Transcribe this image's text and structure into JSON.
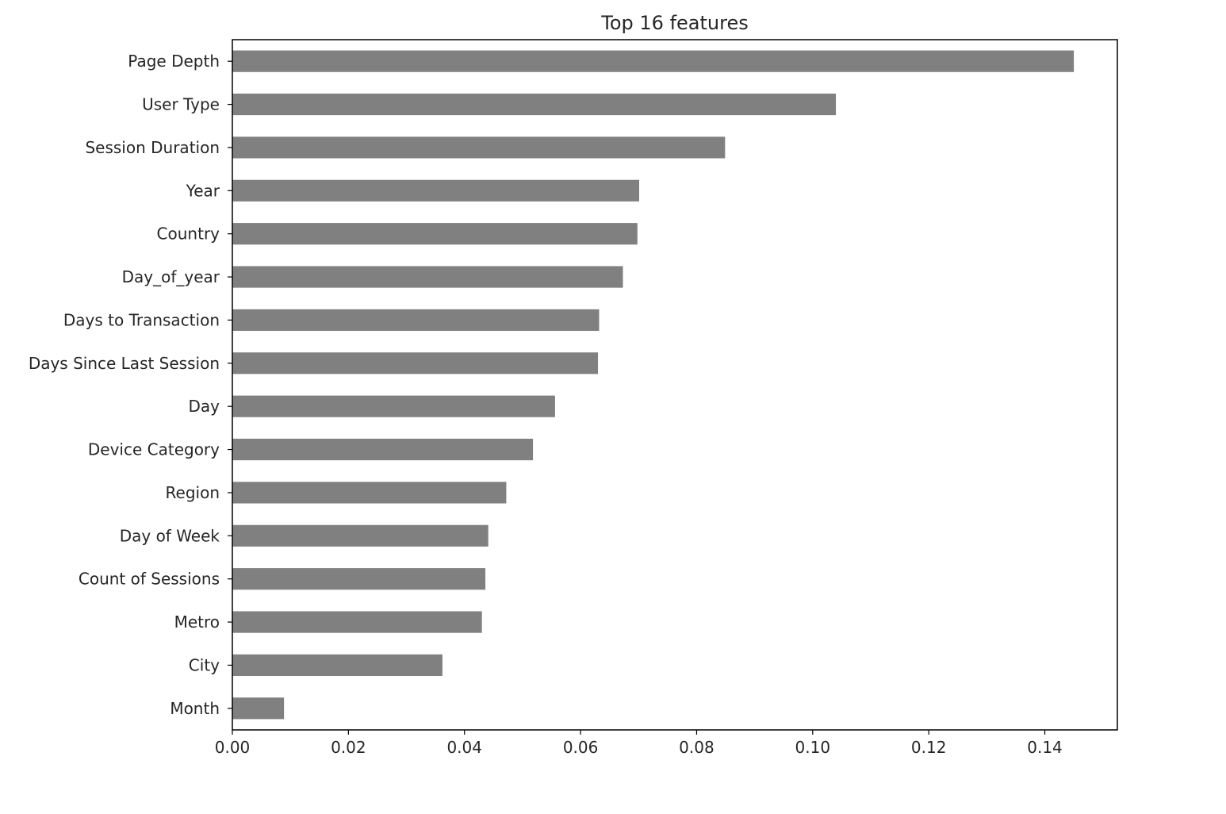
{
  "chart_data": {
    "type": "bar",
    "orientation": "horizontal",
    "title": "Top 16 features",
    "xlabel": "",
    "ylabel": "",
    "xlim": [
      0,
      0.1525
    ],
    "xticks": [
      0.0,
      0.02,
      0.04,
      0.06,
      0.08,
      0.1,
      0.12,
      0.14
    ],
    "xtick_labels": [
      "0.00",
      "0.02",
      "0.04",
      "0.06",
      "0.08",
      "0.10",
      "0.12",
      "0.14"
    ],
    "grid": false,
    "bar_color": "#808080",
    "categories": [
      "Page Depth",
      "User Type",
      "Session Duration",
      "Year",
      "Country",
      "Day_of_year",
      "Days to Transaction",
      "Days Since Last Session",
      "Day",
      "Device Category",
      "Region",
      "Day of Week",
      "Count of Sessions",
      "Metro",
      "City",
      "Month"
    ],
    "values": [
      0.145,
      0.104,
      0.0849,
      0.0701,
      0.0698,
      0.0673,
      0.0632,
      0.063,
      0.0556,
      0.0518,
      0.0472,
      0.0441,
      0.0436,
      0.043,
      0.0362,
      0.0089
    ]
  }
}
